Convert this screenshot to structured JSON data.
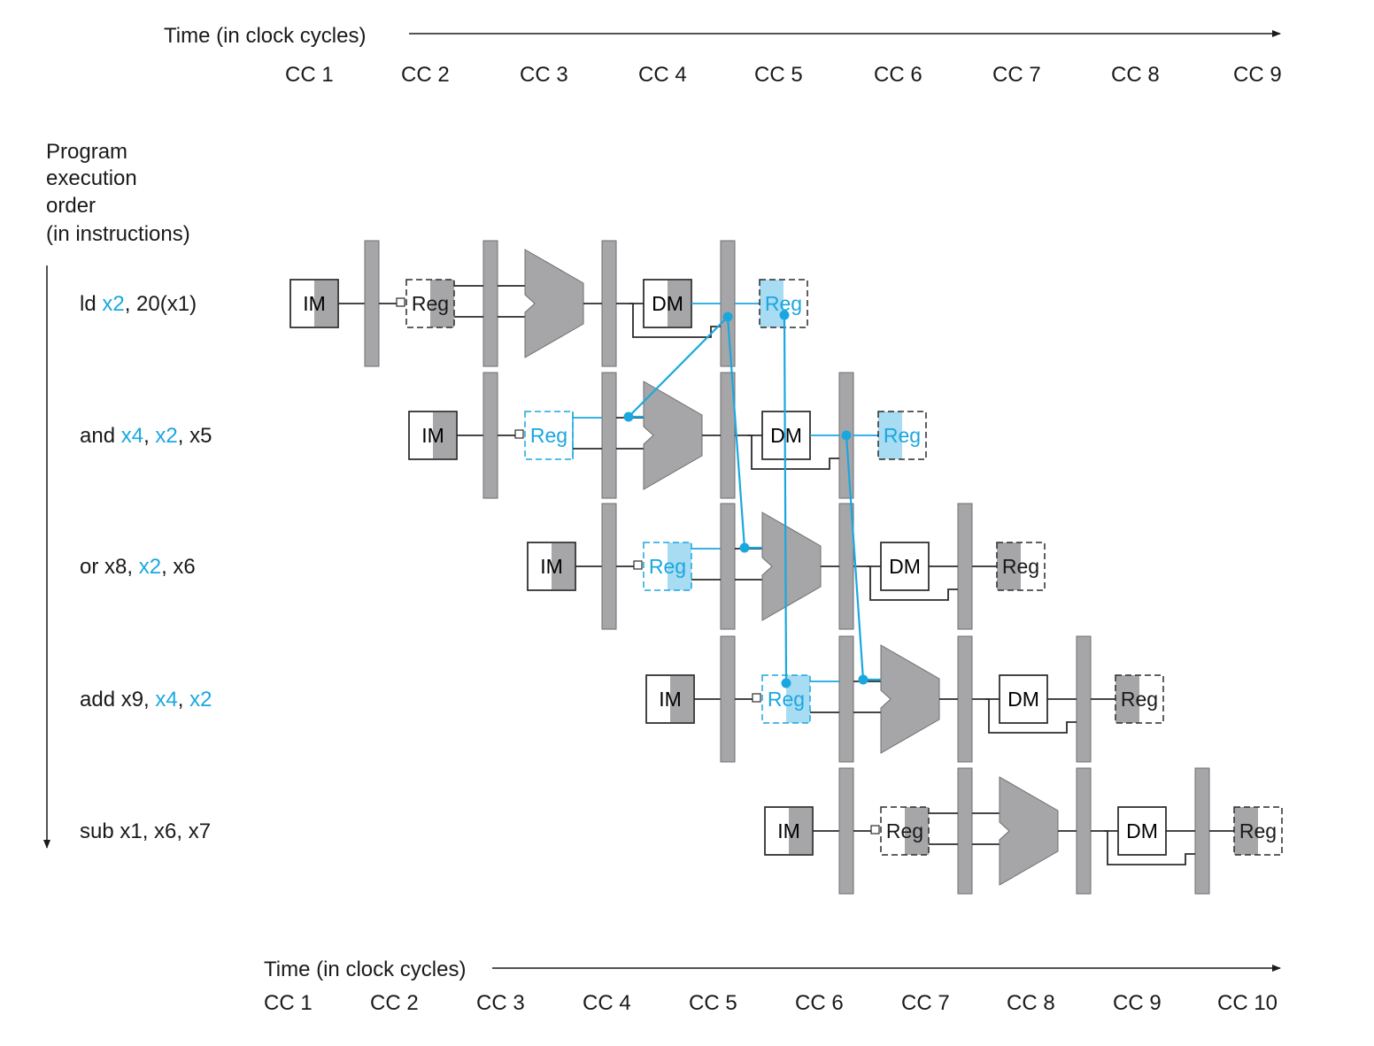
{
  "top_axis": {
    "label": "Time (in clock cycles)",
    "ticks": [
      "CC 1",
      "CC 2",
      "CC 3",
      "CC 4",
      "CC 5",
      "CC 6",
      "CC 7",
      "CC 8",
      "CC 9"
    ]
  },
  "bottom_axis": {
    "label": "Time (in clock cycles)",
    "ticks": [
      "CC 1",
      "CC 2",
      "CC 3",
      "CC 4",
      "CC 5",
      "CC 6",
      "CC 7",
      "CC 8",
      "CC 9",
      "CC 10"
    ]
  },
  "order_label": [
    "Program",
    "execution",
    "order",
    "(in instructions)"
  ],
  "stage_labels": {
    "im": "IM",
    "reg": "Reg",
    "dm": "DM"
  },
  "colors": {
    "accent": "#1aa7e0",
    "accent_fill": "#a7dcf3",
    "gray": "#a6a6a8"
  },
  "instructions": [
    {
      "parts": [
        {
          "t": "ld ",
          "hl": false
        },
        {
          "t": "x2",
          "hl": true
        },
        {
          "t": ", 20(x1)",
          "hl": false
        }
      ]
    },
    {
      "parts": [
        {
          "t": "and ",
          "hl": false
        },
        {
          "t": "x4",
          "hl": true
        },
        {
          "t": ", ",
          "hl": false
        },
        {
          "t": "x2",
          "hl": true
        },
        {
          "t": ", x5",
          "hl": false
        }
      ]
    },
    {
      "parts": [
        {
          "t": "or x8, ",
          "hl": false
        },
        {
          "t": "x2",
          "hl": true
        },
        {
          "t": ", x6",
          "hl": false
        }
      ]
    },
    {
      "parts": [
        {
          "t": "add x9, ",
          "hl": false
        },
        {
          "t": "x4",
          "hl": true
        },
        {
          "t": ", ",
          "hl": false
        },
        {
          "t": "x2",
          "hl": true
        }
      ]
    },
    {
      "parts": [
        {
          "t": "sub x1, x6, x7",
          "hl": false
        }
      ]
    }
  ]
}
